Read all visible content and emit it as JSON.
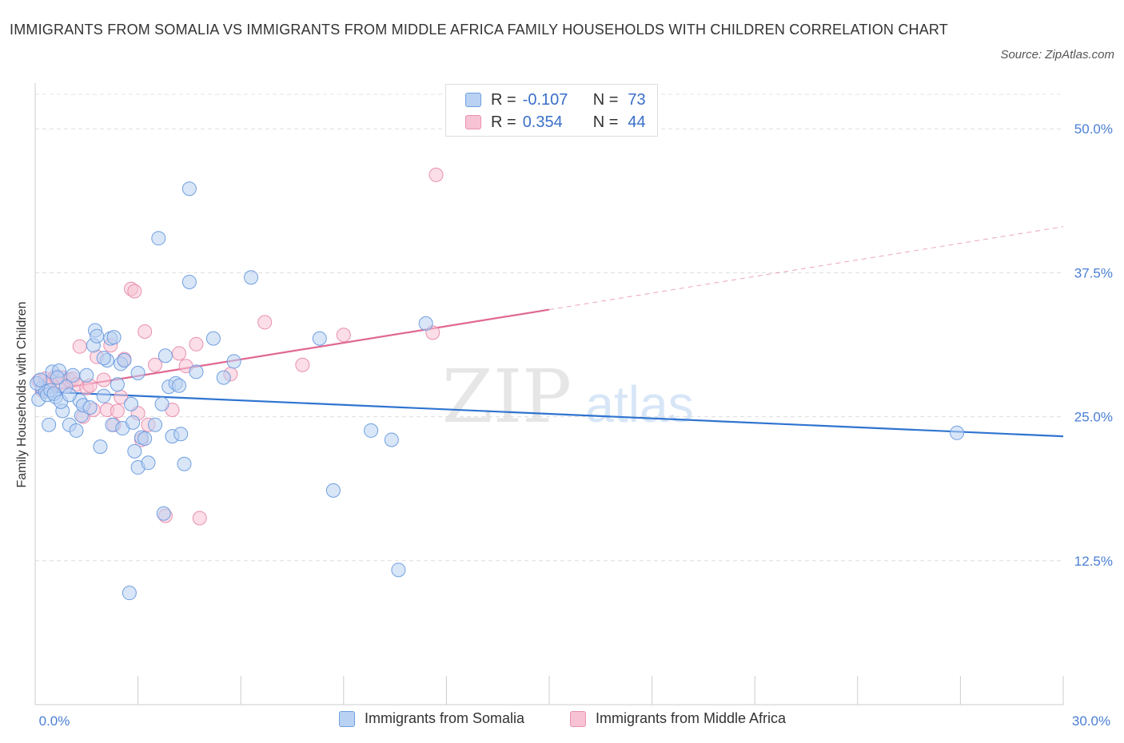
{
  "header": {
    "title": "IMMIGRANTS FROM SOMALIA VS IMMIGRANTS FROM MIDDLE AFRICA FAMILY HOUSEHOLDS WITH CHILDREN CORRELATION CHART",
    "source": "Source: ZipAtlas.com"
  },
  "watermark": {
    "zip": "ZIP",
    "atlas": "atlas"
  },
  "legend": {
    "rows": [
      {
        "r_label": "R =",
        "r_value": "-0.107",
        "n_label": "N =",
        "n_value": "73"
      },
      {
        "r_label": "R =",
        "r_value": "0.354",
        "n_label": "N =",
        "n_value": "44"
      }
    ]
  },
  "bottom_legend": {
    "somalia": "Immigrants from Somalia",
    "middle_africa": "Immigrants from Middle Africa"
  },
  "colors": {
    "somalia_fill": "#b9d2f3",
    "somalia_stroke": "#6f9fe0",
    "somalia_line": "#2f74d0",
    "africa_fill": "#f7c3d4",
    "africa_stroke": "#e890b0",
    "africa_line": "#e06892",
    "tick_text": "#4a7fd4"
  },
  "chart_data": {
    "type": "scatter",
    "title": "IMMIGRANTS FROM SOMALIA VS IMMIGRANTS FROM MIDDLE AFRICA FAMILY HOUSEHOLDS WITH CHILDREN CORRELATION CHART",
    "xlabel": "",
    "ylabel": "Family Households with Children",
    "xlim": [
      0,
      30
    ],
    "ylim": [
      0,
      53
    ],
    "x_tick_labels": [
      "0.0%",
      "30.0%"
    ],
    "y_ticks": [
      12.5,
      25.0,
      37.5,
      50.0
    ],
    "y_tick_labels": [
      "12.5%",
      "25.0%",
      "37.5%",
      "50.0%"
    ],
    "grid": true,
    "series": [
      {
        "name": "Immigrants from Somalia",
        "R": -0.107,
        "N": 73,
        "trend": {
          "x": [
            0,
            30
          ],
          "y": [
            27.2,
            23.3
          ]
        },
        "points": [
          [
            0.1,
            26.5
          ],
          [
            0.2,
            27.5
          ],
          [
            0.3,
            27.2
          ],
          [
            0.4,
            24.3
          ],
          [
            0.5,
            28.9
          ],
          [
            0.6,
            26.7
          ],
          [
            0.7,
            29.0
          ],
          [
            0.8,
            25.5
          ],
          [
            0.9,
            27.6
          ],
          [
            1.0,
            24.3
          ],
          [
            1.1,
            28.6
          ],
          [
            1.2,
            23.8
          ],
          [
            1.3,
            26.4
          ],
          [
            1.35,
            25.1
          ],
          [
            1.4,
            26.0
          ],
          [
            1.5,
            28.6
          ],
          [
            1.6,
            25.8
          ],
          [
            1.7,
            31.2
          ],
          [
            1.75,
            32.5
          ],
          [
            1.8,
            32.0
          ],
          [
            1.9,
            22.4
          ],
          [
            2.0,
            26.8
          ],
          [
            2.1,
            29.9
          ],
          [
            2.2,
            31.8
          ],
          [
            2.25,
            24.3
          ],
          [
            2.3,
            31.9
          ],
          [
            2.4,
            27.8
          ],
          [
            2.5,
            29.6
          ],
          [
            2.55,
            24.0
          ],
          [
            2.6,
            29.9
          ],
          [
            2.8,
            26.1
          ],
          [
            2.85,
            24.5
          ],
          [
            2.9,
            22.0
          ],
          [
            3.0,
            20.6
          ],
          [
            3.1,
            23.2
          ],
          [
            3.2,
            23.1
          ],
          [
            3.5,
            24.3
          ],
          [
            3.6,
            40.5
          ],
          [
            3.7,
            26.1
          ],
          [
            3.75,
            16.6
          ],
          [
            3.8,
            30.3
          ],
          [
            3.9,
            27.6
          ],
          [
            4.0,
            23.3
          ],
          [
            4.1,
            27.9
          ],
          [
            4.2,
            27.7
          ],
          [
            4.25,
            23.5
          ],
          [
            4.35,
            20.9
          ],
          [
            4.5,
            44.8
          ],
          [
            4.5,
            36.7
          ],
          [
            4.7,
            28.9
          ],
          [
            5.2,
            31.8
          ],
          [
            5.5,
            28.4
          ],
          [
            5.8,
            29.8
          ],
          [
            6.3,
            37.1
          ],
          [
            8.3,
            31.8
          ],
          [
            8.7,
            18.6
          ],
          [
            9.8,
            23.8
          ],
          [
            10.4,
            23.0
          ],
          [
            10.6,
            11.7
          ],
          [
            11.4,
            33.1
          ],
          [
            26.9,
            23.6
          ],
          [
            0.05,
            27.9
          ],
          [
            0.15,
            28.2
          ],
          [
            0.35,
            26.9
          ],
          [
            0.45,
            27.3
          ],
          [
            0.55,
            27.0
          ],
          [
            0.65,
            28.4
          ],
          [
            0.75,
            26.3
          ],
          [
            3.0,
            28.8
          ],
          [
            2.0,
            30.1
          ],
          [
            3.3,
            21.0
          ],
          [
            1.0,
            26.9
          ],
          [
            2.75,
            9.7
          ]
        ]
      },
      {
        "name": "Immigrants from Middle Africa",
        "R": 0.354,
        "N": 44,
        "trend": {
          "x": [
            0,
            15
          ],
          "y": [
            27.1,
            34.3
          ]
        },
        "trend_extension": {
          "x": [
            15,
            30
          ],
          "y": [
            34.3,
            41.5
          ]
        },
        "points": [
          [
            0.1,
            28.1
          ],
          [
            0.2,
            27.3
          ],
          [
            0.3,
            28.3
          ],
          [
            0.4,
            27.8
          ],
          [
            0.5,
            28.2
          ],
          [
            0.6,
            28.5
          ],
          [
            0.7,
            27.9
          ],
          [
            0.8,
            28.4
          ],
          [
            0.9,
            27.6
          ],
          [
            1.0,
            28.2
          ],
          [
            1.1,
            28.3
          ],
          [
            1.2,
            27.8
          ],
          [
            1.3,
            31.1
          ],
          [
            1.4,
            25.0
          ],
          [
            1.5,
            27.5
          ],
          [
            1.6,
            27.7
          ],
          [
            1.7,
            25.6
          ],
          [
            1.8,
            30.2
          ],
          [
            2.0,
            28.2
          ],
          [
            2.1,
            25.6
          ],
          [
            2.2,
            31.2
          ],
          [
            2.3,
            24.3
          ],
          [
            2.4,
            25.5
          ],
          [
            2.5,
            26.7
          ],
          [
            2.6,
            30.0
          ],
          [
            2.8,
            36.1
          ],
          [
            2.9,
            35.9
          ],
          [
            3.0,
            25.3
          ],
          [
            3.1,
            23.0
          ],
          [
            3.2,
            32.4
          ],
          [
            3.3,
            24.3
          ],
          [
            3.5,
            29.5
          ],
          [
            3.8,
            16.4
          ],
          [
            4.0,
            25.6
          ],
          [
            4.2,
            30.5
          ],
          [
            4.4,
            29.4
          ],
          [
            4.7,
            31.3
          ],
          [
            4.8,
            16.2
          ],
          [
            5.7,
            28.7
          ],
          [
            6.7,
            33.2
          ],
          [
            7.8,
            29.5
          ],
          [
            9.0,
            32.1
          ],
          [
            11.6,
            32.3
          ],
          [
            11.7,
            46.0
          ]
        ]
      }
    ]
  }
}
